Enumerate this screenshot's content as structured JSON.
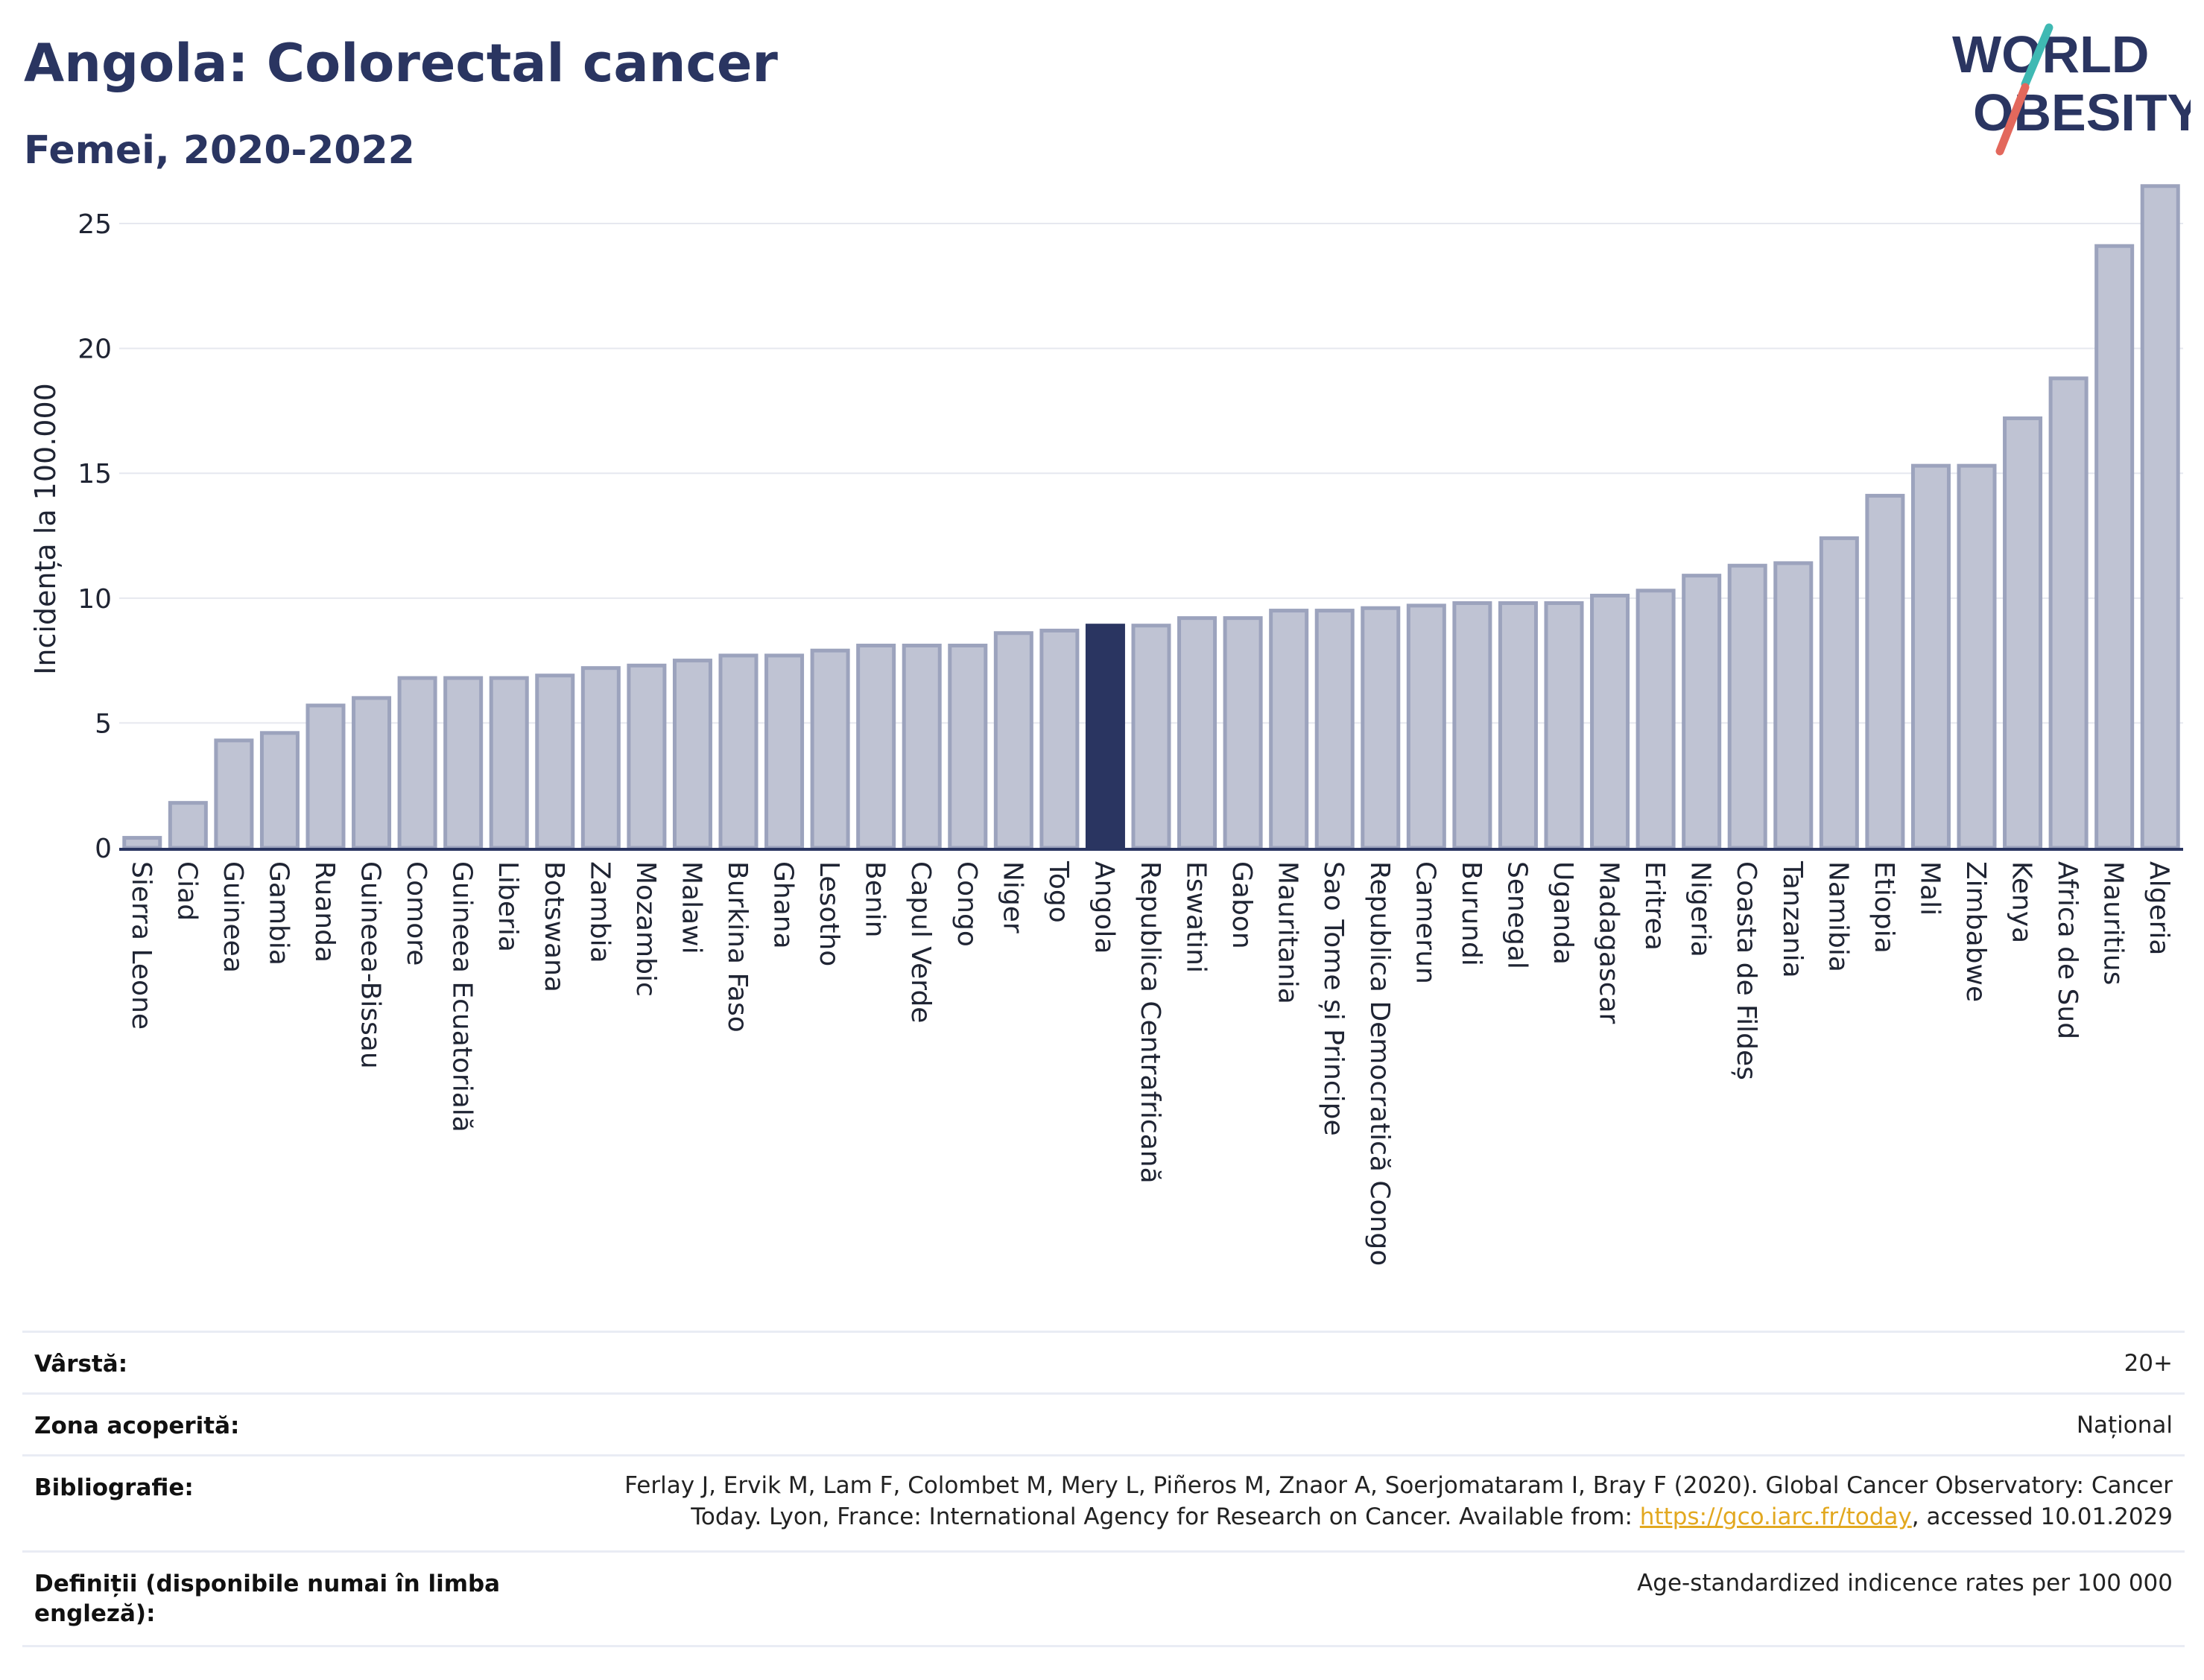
{
  "header": {
    "title": "Angola: Colorectal cancer",
    "subtitle": "Femei, 2020-2022"
  },
  "logo": {
    "line1": "WORLD",
    "line2": "OBESITY",
    "alt": "World Obesity logo"
  },
  "colors": {
    "bar_fill": "#bfc3d3",
    "bar_stroke": "#9ca3bd",
    "highlight": "#2a3561",
    "axis": "#2a3561",
    "grid": "#e6e8ef",
    "link": "#e2a820",
    "logo_teal": "#3fb9b3",
    "logo_red": "#e3685c"
  },
  "chart_data": {
    "type": "bar",
    "title": "Angola: Colorectal cancer",
    "subtitle": "Femei, 2020-2022",
    "xlabel": "",
    "ylabel": "Incidența la 100.000",
    "ylim": [
      0,
      27
    ],
    "yticks": [
      0,
      5,
      10,
      15,
      20,
      25
    ],
    "grid": true,
    "highlight": "Angola",
    "categories": [
      "Sierra Leone",
      "Ciad",
      "Guineea",
      "Gambia",
      "Ruanda",
      "Guineea-Bissau",
      "Comore",
      "Guineea Ecuatorială",
      "Liberia",
      "Botswana",
      "Zambia",
      "Mozambic",
      "Malawi",
      "Burkina Faso",
      "Ghana",
      "Lesotho",
      "Benin",
      "Capul Verde",
      "Congo",
      "Niger",
      "Togo",
      "Angola",
      "Republica Centrafricană",
      "Eswatini",
      "Gabon",
      "Mauritania",
      "Sao Tome și Principe",
      "Republica Democratică Congo",
      "Camerun",
      "Burundi",
      "Senegal",
      "Uganda",
      "Madagascar",
      "Eritrea",
      "Nigeria",
      "Coasta de Fildeș",
      "Tanzania",
      "Namibia",
      "Etiopia",
      "Mali",
      "Zimbabwe",
      "Kenya",
      "Africa de Sud",
      "Mauritius",
      "Algeria"
    ],
    "values": [
      0.4,
      1.8,
      4.3,
      4.6,
      5.7,
      6.0,
      6.8,
      6.8,
      6.8,
      6.9,
      7.2,
      7.3,
      7.5,
      7.7,
      7.7,
      7.9,
      8.1,
      8.1,
      8.1,
      8.6,
      8.7,
      8.9,
      8.9,
      9.2,
      9.2,
      9.5,
      9.5,
      9.6,
      9.7,
      9.8,
      9.8,
      9.8,
      10.1,
      10.3,
      10.9,
      11.3,
      11.4,
      12.4,
      14.1,
      15.3,
      15.3,
      17.2,
      18.8,
      24.1,
      26.5
    ]
  },
  "info": [
    {
      "label": "Vârstă:",
      "value": "20+"
    },
    {
      "label": "Zona acoperită:",
      "value": "Național"
    },
    {
      "label": "Bibliografie:",
      "value_pre": "Ferlay J, Ervik M, Lam F, Colombet M, Mery L, Piñeros M, Znaor A, Soerjomataram I, Bray F (2020). Global Cancer Observatory: Cancer Today. Lyon, France: International Agency for Research on Cancer. Available from: ",
      "link": "https://gco.iarc.fr/today",
      "value_post": ", accessed 10.01.2029"
    },
    {
      "label": "Definiții (disponibile numai în limba engleză):",
      "value": "Age-standardized indicence rates per 100 000"
    }
  ]
}
